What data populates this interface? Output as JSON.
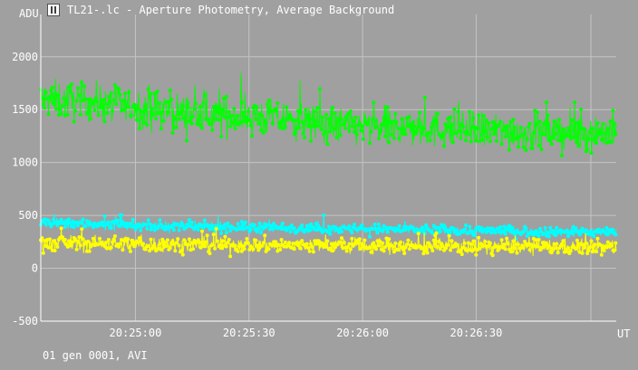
{
  "window": {
    "title": "TL21-.lc - Aperture Photometry, Average Background",
    "icon": "light-curve-app-icon"
  },
  "footer": {
    "info": "01 gen 0001, AVI"
  },
  "chart_data": {
    "type": "scatter",
    "ylabel": "ADU",
    "xlabel": "UT",
    "ylim": [
      -500,
      2400
    ],
    "xlim": [
      "20:24:35",
      "20:27:07"
    ],
    "y_ticks": [
      {
        "value": -500,
        "label": "-500"
      },
      {
        "value": 0,
        "label": "0"
      },
      {
        "value": 500,
        "label": "500"
      },
      {
        "value": 1000,
        "label": "1000"
      },
      {
        "value": 1500,
        "label": "1500"
      },
      {
        "value": 2000,
        "label": "2000"
      }
    ],
    "x_ticks": [
      "20:25:00",
      "20:25:30",
      "20:26:00",
      "20:26:30"
    ],
    "grid": true,
    "series_colors": [
      "#00ff00",
      "#00ffff",
      "#ffff00"
    ],
    "series": [
      {
        "color": "#00ff00",
        "x": [
          "20:24:35",
          "20:24:45",
          "20:24:55",
          "20:25:05",
          "20:25:15",
          "20:25:25",
          "20:25:35",
          "20:25:45",
          "20:25:55",
          "20:26:05",
          "20:26:15",
          "20:26:25",
          "20:26:35",
          "20:26:45",
          "20:26:55",
          "20:27:05"
        ],
        "y": [
          1600,
          1580,
          1550,
          1500,
          1460,
          1440,
          1420,
          1380,
          1350,
          1330,
          1320,
          1310,
          1300,
          1290,
          1280,
          1290
        ],
        "spread": 230
      },
      {
        "color": "#00ffff",
        "x": [
          "20:24:35",
          "20:24:45",
          "20:24:55",
          "20:25:05",
          "20:25:15",
          "20:25:25",
          "20:25:35",
          "20:25:45",
          "20:25:55",
          "20:26:05",
          "20:26:15",
          "20:26:25",
          "20:26:35",
          "20:26:45",
          "20:26:55",
          "20:27:05"
        ],
        "y": [
          430,
          420,
          410,
          400,
          395,
          390,
          385,
          380,
          375,
          370,
          365,
          360,
          355,
          350,
          345,
          340
        ],
        "spread": 60
      },
      {
        "color": "#ffff00",
        "x": [
          "20:24:35",
          "20:24:45",
          "20:24:55",
          "20:25:05",
          "20:25:15",
          "20:25:25",
          "20:25:35",
          "20:25:45",
          "20:25:55",
          "20:26:05",
          "20:26:15",
          "20:26:25",
          "20:26:35",
          "20:26:45",
          "20:26:55",
          "20:27:05"
        ],
        "y": [
          240,
          235,
          230,
          225,
          225,
          220,
          220,
          215,
          215,
          210,
          210,
          205,
          205,
          200,
          200,
          200
        ],
        "spread": 95
      }
    ]
  }
}
